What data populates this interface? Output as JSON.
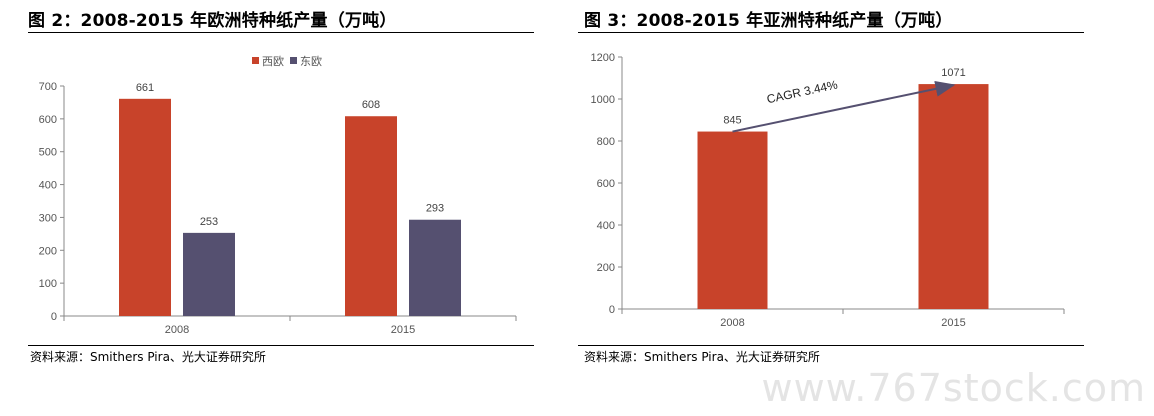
{
  "left": {
    "title": "图 2：2008-2015 年欧洲特种纸产量（万吨）",
    "source": "资料来源：Smithers Pira、光大证券研究所",
    "chart_data": {
      "type": "bar",
      "categories": [
        "2008",
        "2015"
      ],
      "series": [
        {
          "name": "西欧",
          "color": "#c8432a",
          "values": [
            661,
            608
          ]
        },
        {
          "name": "东欧",
          "color": "#555070",
          "values": [
            253,
            293
          ]
        }
      ],
      "yticks": [
        0,
        100,
        200,
        300,
        400,
        500,
        600,
        700
      ],
      "ylim": [
        0,
        700
      ],
      "legend": "top-center",
      "grid": false
    }
  },
  "right": {
    "title": "图 3：2008-2015 年亚洲特种纸产量（万吨）",
    "source": "资料来源：Smithers Pira、光大证券研究所",
    "chart_data": {
      "type": "bar",
      "categories": [
        "2008",
        "2015"
      ],
      "series": [
        {
          "color": "#c8432a",
          "values": [
            845,
            1071
          ]
        }
      ],
      "yticks": [
        0,
        200,
        400,
        600,
        800,
        1000,
        1200
      ],
      "ylim": [
        0,
        1200
      ],
      "annotation": "CAGR 3.44%",
      "grid": false
    }
  },
  "watermark": "www.767stock.com"
}
